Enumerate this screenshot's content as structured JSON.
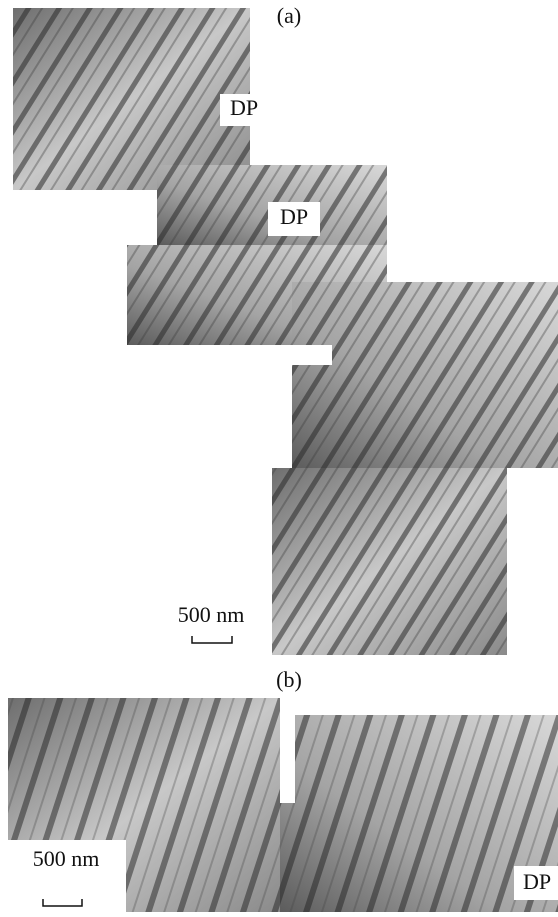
{
  "panels": [
    {
      "label": "(a)",
      "annotations": [
        "DP",
        "DP"
      ],
      "scale_bar": "500 nm"
    },
    {
      "label": "(b)",
      "annotations": [
        "DP"
      ],
      "scale_bar": "500 nm"
    }
  ]
}
